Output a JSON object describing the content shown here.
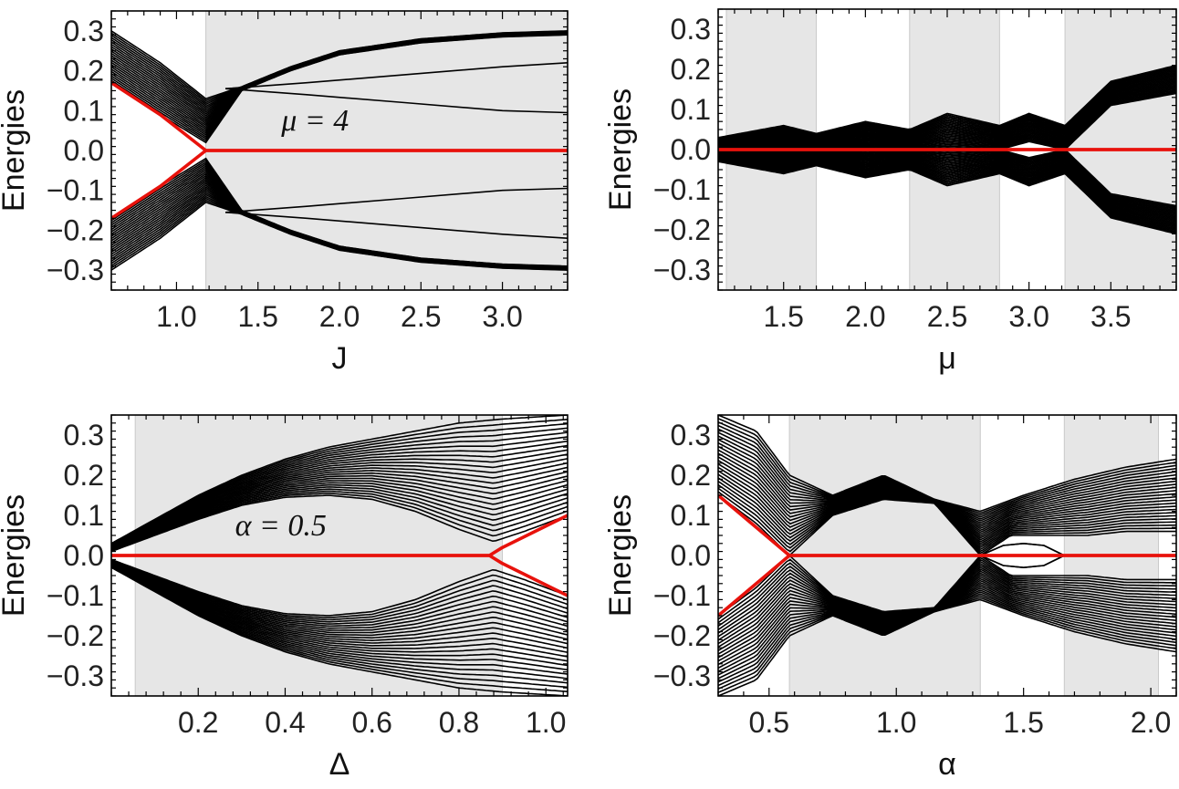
{
  "chart_data": [
    {
      "type": "line",
      "panel": "top-left",
      "xlabel": "J",
      "ylabel": "Energies",
      "xlim": [
        0.6,
        3.4
      ],
      "ylim": [
        -0.35,
        0.35
      ],
      "xticks": [
        1.0,
        1.5,
        2.0,
        2.5,
        3.0
      ],
      "xtick_labels": [
        "1.0",
        "1.5",
        "2.0",
        "2.5",
        "3.0"
      ],
      "yticks": [
        0.3,
        0.2,
        0.1,
        0.0,
        -0.1,
        -0.2,
        -0.3
      ],
      "ytick_labels": [
        "0.3",
        "0.2",
        "0.1",
        "0.0",
        "−0.1",
        "−0.2",
        "−0.3"
      ],
      "annotation": "μ = 4",
      "annotation_at": [
        1.85,
        0.05
      ],
      "shaded_regions": [
        [
          1.18,
          3.4
        ]
      ],
      "bulk_band": {
        "count": 24,
        "inner_edge": {
          "x": [
            0.6,
            0.9,
            1.18,
            1.4,
            1.7,
            2.0,
            2.5,
            3.0,
            3.4
          ],
          "y": [
            0.17,
            0.09,
            0.02,
            0.15,
            0.2,
            0.24,
            0.27,
            0.285,
            0.29
          ]
        },
        "outer_edge": {
          "x": [
            0.6,
            0.9,
            1.18,
            1.4,
            1.7,
            2.0,
            2.5,
            3.0,
            3.4
          ],
          "y": [
            0.3,
            0.22,
            0.13,
            0.16,
            0.21,
            0.25,
            0.28,
            0.295,
            0.3
          ]
        }
      },
      "red_zero_mode": {
        "x": [
          0.6,
          0.9,
          1.18,
          3.4
        ],
        "y": [
          0.17,
          0.09,
          0.0,
          0.0
        ],
        "symmetric": true
      },
      "extra_black_curves": [
        {
          "x": [
            1.3,
            1.8,
            2.4,
            3.0,
            3.4
          ],
          "y": [
            0.155,
            0.14,
            0.12,
            0.1,
            0.095
          ]
        },
        {
          "x": [
            1.3,
            1.8,
            2.4,
            3.0,
            3.4
          ],
          "y": [
            0.155,
            0.17,
            0.19,
            0.21,
            0.22
          ]
        }
      ]
    },
    {
      "type": "line",
      "panel": "top-right",
      "xlabel": "μ",
      "ylabel": "Energies",
      "xlim": [
        1.1,
        3.9
      ],
      "ylim": [
        -0.35,
        0.35
      ],
      "xticks": [
        1.5,
        2.0,
        2.5,
        3.0,
        3.5
      ],
      "xtick_labels": [
        "1.5",
        "2.0",
        "2.5",
        "3.0",
        "3.5"
      ],
      "yticks": [
        0.3,
        0.2,
        0.1,
        0.0,
        -0.1,
        -0.2,
        -0.3
      ],
      "ytick_labels": [
        "0.3",
        "0.2",
        "0.1",
        "0.0",
        "−0.1",
        "−0.2",
        "−0.3"
      ],
      "shaded_regions": [
        [
          1.15,
          1.7
        ],
        [
          2.27,
          2.82
        ],
        [
          3.22,
          3.9
        ]
      ],
      "bulk_band": {
        "count": 24,
        "inner_edge": {
          "x": [
            1.1,
            1.5,
            1.7,
            2.0,
            2.27,
            2.5,
            2.82,
            3.0,
            3.22,
            3.5,
            3.9
          ],
          "y": [
            0.005,
            0.005,
            0.0,
            0.005,
            0.0,
            0.005,
            0.0,
            0.02,
            0.0,
            0.11,
            0.14
          ]
        },
        "outer_edge": {
          "x": [
            1.1,
            1.5,
            1.7,
            2.0,
            2.27,
            2.5,
            2.82,
            3.0,
            3.22,
            3.5,
            3.9
          ],
          "y": [
            0.03,
            0.06,
            0.04,
            0.07,
            0.05,
            0.09,
            0.06,
            0.09,
            0.06,
            0.17,
            0.21
          ]
        }
      },
      "red_zero_mode": {
        "x": [
          1.1,
          3.9
        ],
        "y": [
          0.0,
          0.0
        ],
        "symmetric": true
      },
      "extra_black_curves": []
    },
    {
      "type": "line",
      "panel": "bottom-left",
      "xlabel": "Δ",
      "ylabel": "Energies",
      "xlim": [
        0.0,
        1.05
      ],
      "ylim": [
        -0.35,
        0.35
      ],
      "xticks": [
        0.2,
        0.4,
        0.6,
        0.8,
        1.0
      ],
      "xtick_labels": [
        "0.2",
        "0.4",
        "0.6",
        "0.8",
        "1.0"
      ],
      "yticks": [
        0.3,
        0.2,
        0.1,
        0.0,
        -0.1,
        -0.2,
        -0.3
      ],
      "ytick_labels": [
        "0.3",
        "0.2",
        "0.1",
        "0.0",
        "−0.1",
        "−0.2",
        "−0.3"
      ],
      "annotation": "α = 0.5",
      "annotation_at": [
        0.39,
        0.05
      ],
      "shaded_regions": [
        [
          0.055,
          0.9
        ]
      ],
      "bulk_band": {
        "count": 24,
        "inner_edge": {
          "x": [
            0.0,
            0.1,
            0.2,
            0.3,
            0.4,
            0.5,
            0.6,
            0.7,
            0.8,
            0.88,
            0.95,
            1.05
          ],
          "y": [
            0.01,
            0.05,
            0.09,
            0.125,
            0.145,
            0.15,
            0.14,
            0.11,
            0.065,
            0.035,
            0.06,
            0.1
          ]
        },
        "outer_edge": {
          "x": [
            0.0,
            0.1,
            0.2,
            0.3,
            0.4,
            0.5,
            0.6,
            0.7,
            0.8,
            0.9,
            1.05
          ],
          "y": [
            0.03,
            0.09,
            0.15,
            0.2,
            0.24,
            0.27,
            0.29,
            0.31,
            0.33,
            0.34,
            0.35
          ]
        }
      },
      "red_zero_mode": {
        "x": [
          0.0,
          0.87,
          0.9,
          1.05
        ],
        "y": [
          0.0,
          0.0,
          0.02,
          0.1
        ],
        "symmetric": true
      },
      "extra_black_curves": []
    },
    {
      "type": "line",
      "panel": "bottom-right",
      "xlabel": "α",
      "ylabel": "Energies",
      "xlim": [
        0.3,
        2.1
      ],
      "ylim": [
        -0.35,
        0.35
      ],
      "xticks": [
        0.5,
        1.0,
        1.5,
        2.0
      ],
      "xtick_labels": [
        "0.5",
        "1.0",
        "1.5",
        "2.0"
      ],
      "yticks": [
        0.3,
        0.2,
        0.1,
        0.0,
        -0.1,
        -0.2,
        -0.3
      ],
      "ytick_labels": [
        "0.3",
        "0.2",
        "0.1",
        "0.0",
        "−0.1",
        "−0.2",
        "−0.3"
      ],
      "shaded_regions": [
        [
          0.58,
          1.33
        ],
        [
          1.66,
          2.03
        ]
      ],
      "bulk_band": {
        "count": 24,
        "inner_edge": {
          "x": [
            0.3,
            0.45,
            0.58,
            0.75,
            0.95,
            1.15,
            1.33,
            1.45,
            1.6,
            1.75,
            1.9,
            2.1
          ],
          "y": [
            0.15,
            0.08,
            0.0,
            0.1,
            0.14,
            0.13,
            0.0,
            0.05,
            0.05,
            0.05,
            0.06,
            0.06
          ]
        },
        "outer_edge": {
          "x": [
            0.3,
            0.45,
            0.58,
            0.75,
            0.95,
            1.15,
            1.33,
            1.5,
            1.7,
            1.9,
            2.1
          ],
          "y": [
            0.35,
            0.31,
            0.2,
            0.15,
            0.2,
            0.14,
            0.11,
            0.15,
            0.19,
            0.22,
            0.24
          ]
        }
      },
      "red_zero_mode": {
        "x": [
          0.3,
          0.45,
          0.58,
          2.1
        ],
        "y": [
          0.15,
          0.07,
          0.0,
          0.0
        ],
        "symmetric": true
      },
      "extra_black_curves": [
        {
          "x": [
            1.33,
            1.42,
            1.5,
            1.58,
            1.66
          ],
          "y": [
            0.0,
            0.025,
            0.03,
            0.025,
            0.0
          ]
        },
        {
          "x": [
            1.33,
            1.42,
            1.5,
            1.58,
            1.66
          ],
          "y": [
            0.0,
            -0.025,
            -0.03,
            -0.025,
            0.0
          ]
        }
      ]
    }
  ]
}
